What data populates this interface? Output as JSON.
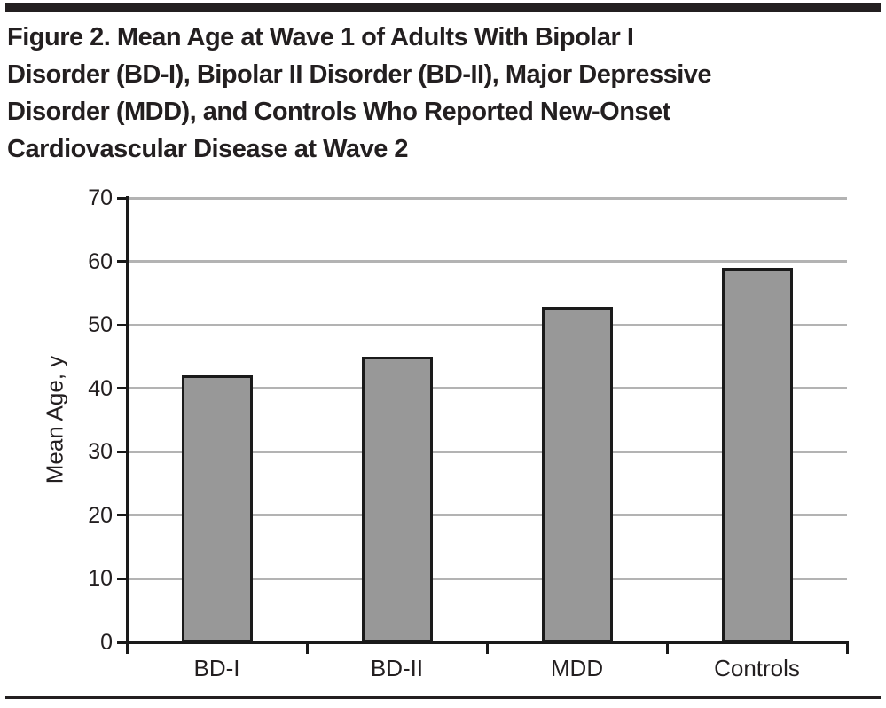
{
  "figure": {
    "title_lines": [
      "Figure 2. Mean Age at Wave 1 of Adults With Bipolar I",
      "Disorder (BD-I), Bipolar II Disorder (BD-II), Major Depressive",
      "Disorder (MDD), and Controls Who Reported New-Onset",
      "Cardiovascular Disease at Wave 2"
    ]
  },
  "chart_data": {
    "type": "bar",
    "title": "Figure 2. Mean Age at Wave 1 of Adults With Bipolar I Disorder (BD-I), Bipolar II Disorder (BD-II), Major Depressive Disorder (MDD), and Controls Who Reported New-Onset Cardiovascular Disease at Wave 2",
    "categories": [
      "BD-I",
      "BD-II",
      "MDD",
      "Controls"
    ],
    "values": [
      42,
      45,
      52.8,
      59
    ],
    "xlabel": "",
    "ylabel": "Mean Age, y",
    "ylim": [
      0,
      70
    ],
    "yticks": [
      0,
      10,
      20,
      30,
      40,
      50,
      60,
      70
    ],
    "grid": true,
    "legend": false,
    "colors": {
      "bar_fill": "#989898",
      "bar_border": "#1a1a1a",
      "gridline": "#b3b3b3",
      "axis": "#1a1a1a",
      "text": "#231f20"
    }
  }
}
